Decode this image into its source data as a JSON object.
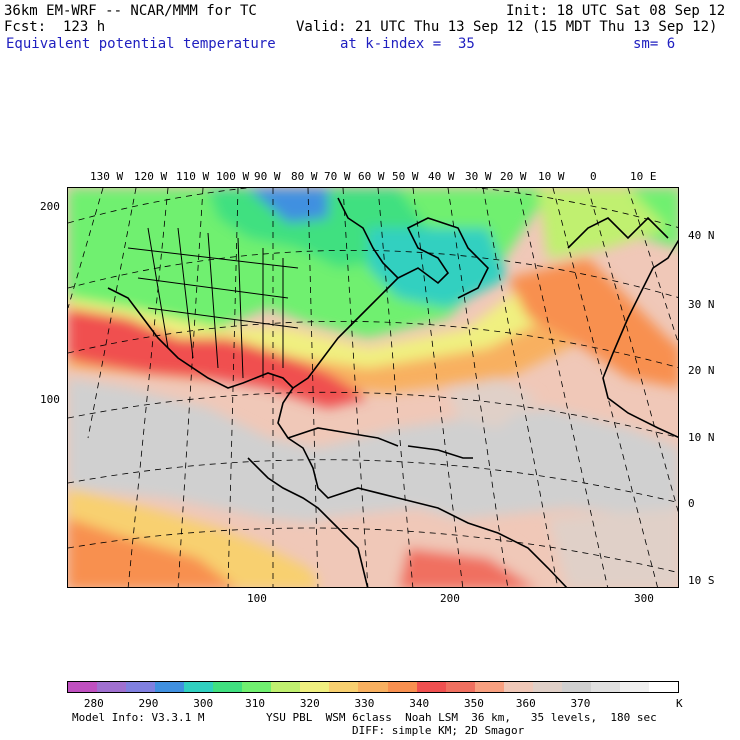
{
  "header": {
    "model": "36km EM-WRF -- NCAR/MMM for TC",
    "init": "Init: 18 UTC Sat 08 Sep 12",
    "fcst": "Fcst:  123 h",
    "valid": "Valid: 21 UTC Thu 13 Sep 12 (15 MDT Thu 13 Sep 12)",
    "field": "Equivalent potential temperature",
    "level": "at k-index =  35",
    "smooth": "sm= 6"
  },
  "map": {
    "lon_labels": [
      "130 W",
      "120 W",
      "110 W",
      "100 W",
      "90 W",
      "80 W",
      "70 W",
      "60 W",
      "50 W",
      "40 W",
      "30 W",
      "20 W",
      "10 W",
      "0",
      "10 E"
    ],
    "lat_labels": [
      "40 N",
      "30 N",
      "20 N",
      "10 N",
      "0",
      "10 S"
    ],
    "grid_x_labels": [
      "100",
      "200",
      "300"
    ],
    "grid_y_labels": [
      "200",
      "100"
    ]
  },
  "colorbar": {
    "labels": [
      "280",
      "290",
      "300",
      "310",
      "320",
      "330",
      "340",
      "350",
      "360",
      "370"
    ],
    "unit": "K",
    "colors": [
      "#c050c0",
      "#a070d0",
      "#8080e0",
      "#4090e0",
      "#30d0c0",
      "#40e080",
      "#70f070",
      "#c0f070",
      "#f0f080",
      "#f8d070",
      "#f8b060",
      "#f89050",
      "#f05050",
      "#f07060",
      "#f8a080",
      "#f0c8b8",
      "#e0d0c8",
      "#d0d0d0",
      "#e0e0e0",
      "#f0f0f0",
      "#ffffff"
    ]
  },
  "footer": {
    "info": "Model Info: V3.3.1 M",
    "physics": "YSU PBL  WSM 6class  Noah LSM  36 km,   35 levels,  180 sec",
    "physics2": "DIFF: simple KM; 2D Smagor"
  }
}
